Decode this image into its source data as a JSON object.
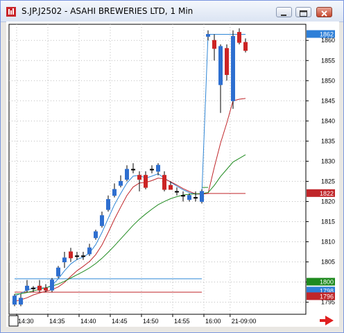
{
  "window": {
    "title": "S.JP.J2502 - ASAHI BREWERIES LTD, 1 Min",
    "buttons": [
      "minimize",
      "maximize",
      "close"
    ]
  },
  "chart_data": {
    "type": "candlestick",
    "symbol": "S.JP.J2502",
    "name": "ASAHI BREWERIES LTD",
    "interval": "1 Min",
    "ylim": [
      1792,
      1864
    ],
    "y_ticks": [
      1795,
      1800,
      1805,
      1810,
      1815,
      1820,
      1825,
      1830,
      1835,
      1840,
      1845,
      1850,
      1855,
      1860
    ],
    "x_ticks": [
      "14:30",
      "14:35",
      "14:40",
      "14:45",
      "14:50",
      "14:55",
      "16:00",
      "21-09:00"
    ],
    "price_labels": [
      {
        "value": "1862",
        "color": "#2e7fd8"
      },
      {
        "value": "1822",
        "color": "#c0262a"
      },
      {
        "value": "1800",
        "color": "#1f8a1f"
      },
      {
        "value": "1798",
        "color": "#2e7fd8"
      },
      {
        "value": "1796",
        "color": "#c0262a"
      }
    ],
    "colors": {
      "up": "#2e6fd0",
      "down": "#cc2424",
      "flat": "#000000",
      "grid": "#bdbdbd"
    },
    "candles": [
      {
        "x": 0,
        "o": 1794.5,
        "h": 1797.0,
        "l": 1794.0,
        "c": 1796.5
      },
      {
        "x": 1,
        "o": 1794.5,
        "h": 1797.0,
        "l": 1794.0,
        "c": 1796.0
      },
      {
        "x": 2,
        "o": 1798.0,
        "h": 1800.5,
        "l": 1797.5,
        "c": 1799.0
      },
      {
        "x": 3,
        "o": 1798.5,
        "h": 1799.0,
        "l": 1797.5,
        "c": 1798.5
      },
      {
        "x": 4,
        "o": 1799.0,
        "h": 1800.5,
        "l": 1797.5,
        "c": 1798.0
      },
      {
        "x": 5,
        "o": 1798.5,
        "h": 1799.5,
        "l": 1797.5,
        "c": 1798.0
      },
      {
        "x": 6,
        "o": 1798.0,
        "h": 1801.0,
        "l": 1797.5,
        "c": 1800.5
      },
      {
        "x": 7,
        "o": 1801.5,
        "h": 1804.0,
        "l": 1801.0,
        "c": 1803.5
      },
      {
        "x": 8,
        "o": 1805.0,
        "h": 1807.5,
        "l": 1803.5,
        "c": 1806.0
      },
      {
        "x": 9,
        "o": 1807.5,
        "h": 1808.5,
        "l": 1805.0,
        "c": 1806.0
      },
      {
        "x": 10,
        "o": 1806.5,
        "h": 1807.5,
        "l": 1805.5,
        "c": 1806.5
      },
      {
        "x": 11,
        "o": 1806.5,
        "h": 1807.5,
        "l": 1805.5,
        "c": 1806.5
      },
      {
        "x": 12,
        "o": 1807.0,
        "h": 1809.5,
        "l": 1806.5,
        "c": 1808.5
      },
      {
        "x": 13,
        "o": 1811.0,
        "h": 1813.0,
        "l": 1810.5,
        "c": 1812.5
      },
      {
        "x": 14,
        "o": 1814.0,
        "h": 1817.5,
        "l": 1813.5,
        "c": 1816.5
      },
      {
        "x": 15,
        "o": 1818.0,
        "h": 1821.5,
        "l": 1817.5,
        "c": 1820.5
      },
      {
        "x": 16,
        "o": 1821.5,
        "h": 1824.5,
        "l": 1821.0,
        "c": 1823.0
      },
      {
        "x": 17,
        "o": 1824.0,
        "h": 1826.5,
        "l": 1823.5,
        "c": 1825.0
      },
      {
        "x": 18,
        "o": 1825.5,
        "h": 1829.0,
        "l": 1825.0,
        "c": 1828.0
      },
      {
        "x": 19,
        "o": 1828.0,
        "h": 1829.5,
        "l": 1827.0,
        "c": 1828.0
      },
      {
        "x": 20,
        "o": 1826.5,
        "h": 1827.5,
        "l": 1822.5,
        "c": 1825.5
      },
      {
        "x": 21,
        "o": 1826.5,
        "h": 1827.5,
        "l": 1823.0,
        "c": 1823.5
      },
      {
        "x": 22,
        "o": 1828.0,
        "h": 1829.0,
        "l": 1827.0,
        "c": 1828.0
      },
      {
        "x": 23,
        "o": 1827.5,
        "h": 1829.5,
        "l": 1826.5,
        "c": 1829.0
      },
      {
        "x": 24,
        "o": 1826.5,
        "h": 1827.5,
        "l": 1822.5,
        "c": 1823.0
      },
      {
        "x": 25,
        "o": 1824.0,
        "h": 1825.0,
        "l": 1823.0,
        "c": 1823.0
      },
      {
        "x": 26,
        "o": 1822.5,
        "h": 1823.5,
        "l": 1821.5,
        "c": 1822.5
      },
      {
        "x": 27,
        "o": 1821.5,
        "h": 1822.5,
        "l": 1820.0,
        "c": 1821.5
      },
      {
        "x": 28,
        "o": 1820.5,
        "h": 1822.0,
        "l": 1820.0,
        "c": 1821.5
      },
      {
        "x": 29,
        "o": 1821.0,
        "h": 1822.5,
        "l": 1820.0,
        "c": 1821.0
      },
      {
        "x": 30,
        "o": 1820.0,
        "h": 1823.0,
        "l": 1819.5,
        "c": 1822.5
      },
      {
        "x": 31,
        "o": 1861.0,
        "h": 1862.5,
        "l": 1860.0,
        "c": 1861.5
      },
      {
        "x": 32,
        "o": 1860.0,
        "h": 1861.5,
        "l": 1855.0,
        "c": 1858.0
      },
      {
        "x": 33,
        "o": 1849.0,
        "h": 1859.0,
        "l": 1842.0,
        "c": 1858.5
      },
      {
        "x": 34,
        "o": 1858.0,
        "h": 1859.0,
        "l": 1850.0,
        "c": 1851.5
      },
      {
        "x": 35,
        "o": 1845.0,
        "h": 1862.5,
        "l": 1843.0,
        "c": 1861.0
      },
      {
        "x": 36,
        "o": 1862.0,
        "h": 1863.0,
        "l": 1859.0,
        "c": 1859.5
      },
      {
        "x": 37,
        "o": 1859.5,
        "h": 1860.5,
        "l": 1857.0,
        "c": 1857.5
      }
    ],
    "series": [
      {
        "color": "#2f86d6",
        "values": [
          1796.5,
          1797.2,
          1798.0,
          1798.5,
          1798.6,
          1798.5,
          1799.2,
          1800.8,
          1802.8,
          1804.5,
          1805.6,
          1806.2,
          1807.2,
          1809.3,
          1812.3,
          1815.8,
          1819.2,
          1822.0,
          1824.6,
          1826.3,
          1826.5,
          1825.8,
          1826.3,
          1826.9,
          1825.8,
          1824.8,
          1823.8,
          1822.9,
          1822.2,
          1821.8,
          1821.9,
          1861.5,
          1861.5,
          1861.5,
          1861.5,
          1861.5,
          1861.5,
          1861.5
        ]
      },
      {
        "color": "#c0262a",
        "values": [
          1795.2,
          1795.6,
          1796.1,
          1796.8,
          1797.3,
          1797.7,
          1798.1,
          1798.8,
          1799.9,
          1801.4,
          1802.8,
          1803.9,
          1805.1,
          1806.8,
          1809.2,
          1812.3,
          1815.6,
          1818.6,
          1821.5,
          1823.6,
          1824.6,
          1824.7,
          1825.2,
          1825.8,
          1825.6,
          1824.9,
          1824.1,
          1823.2,
          1822.5,
          1821.9,
          1821.8,
          1822.0,
          1828.5,
          1834.5,
          1839.5,
          1845.0,
          1845.4,
          1845.6
        ]
      },
      {
        "color": "#1f8a1f",
        "values": [
          1797.0,
          1797.1,
          1797.4,
          1797.8,
          1798.2,
          1798.6,
          1799.0,
          1799.5,
          1800.2,
          1801.0,
          1801.8,
          1802.6,
          1803.5,
          1804.6,
          1805.9,
          1807.4,
          1809.0,
          1810.7,
          1812.4,
          1814.1,
          1815.6,
          1816.9,
          1818.1,
          1819.2,
          1820.0,
          1820.7,
          1821.2,
          1821.6,
          1821.8,
          1821.9,
          1822.0,
          1822.2,
          1824.0,
          1826.2,
          1828.0,
          1829.8,
          1830.7,
          1831.6
        ]
      }
    ],
    "flat_lines": [
      {
        "color": "#2f86d6",
        "from_x": 0,
        "to_x": 30,
        "value": 1800.8
      },
      {
        "color": "#c0262a",
        "from_x": 0,
        "to_x": 30,
        "value": 1797.5
      },
      {
        "color": "#c0262a",
        "from_x": 30,
        "to_x": 37,
        "value": 1822.0
      },
      {
        "color": "#1f8a1f",
        "from_x": 30,
        "to_x": 31,
        "value": 1823.5
      }
    ]
  }
}
